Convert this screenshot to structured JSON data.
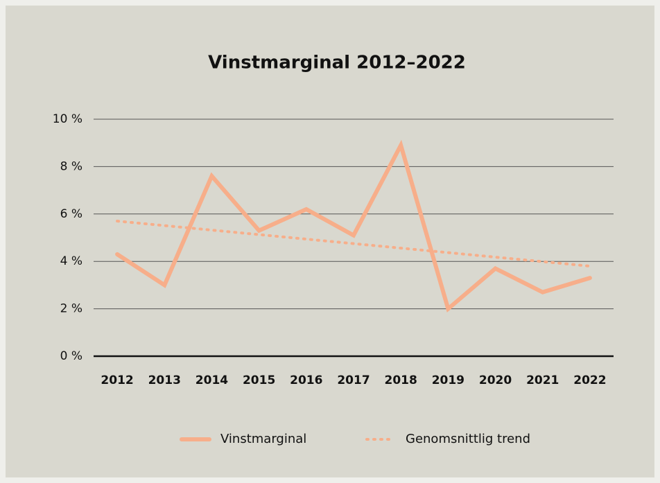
{
  "chart_data": {
    "type": "line",
    "title": "Vinstmarginal 2012–2022",
    "categories": [
      "2012",
      "2013",
      "2014",
      "2015",
      "2016",
      "2017",
      "2018",
      "2019",
      "2020",
      "2021",
      "2022"
    ],
    "series": [
      {
        "name": "Vinstmarginal",
        "color": "#f7ae8a",
        "style": "solid",
        "values": [
          4.3,
          3.0,
          7.6,
          5.3,
          6.2,
          5.1,
          8.9,
          2.0,
          3.7,
          2.7,
          3.3
        ]
      },
      {
        "name": "Genomsnittlig trend",
        "color": "#f7ae8a",
        "style": "dotted",
        "values": [
          5.7,
          5.51,
          5.32,
          5.13,
          4.94,
          4.75,
          4.56,
          4.37,
          4.18,
          3.99,
          3.8
        ]
      }
    ],
    "ylim": [
      0,
      10
    ],
    "yticks": [
      {
        "value": 0,
        "label": "0 %"
      },
      {
        "value": 2,
        "label": "2 %"
      },
      {
        "value": 4,
        "label": "4 %"
      },
      {
        "value": 6,
        "label": "6 %"
      },
      {
        "value": 8,
        "label": "8 %"
      },
      {
        "value": 10,
        "label": "10 %"
      }
    ],
    "grid": true,
    "legend": "bottom"
  }
}
